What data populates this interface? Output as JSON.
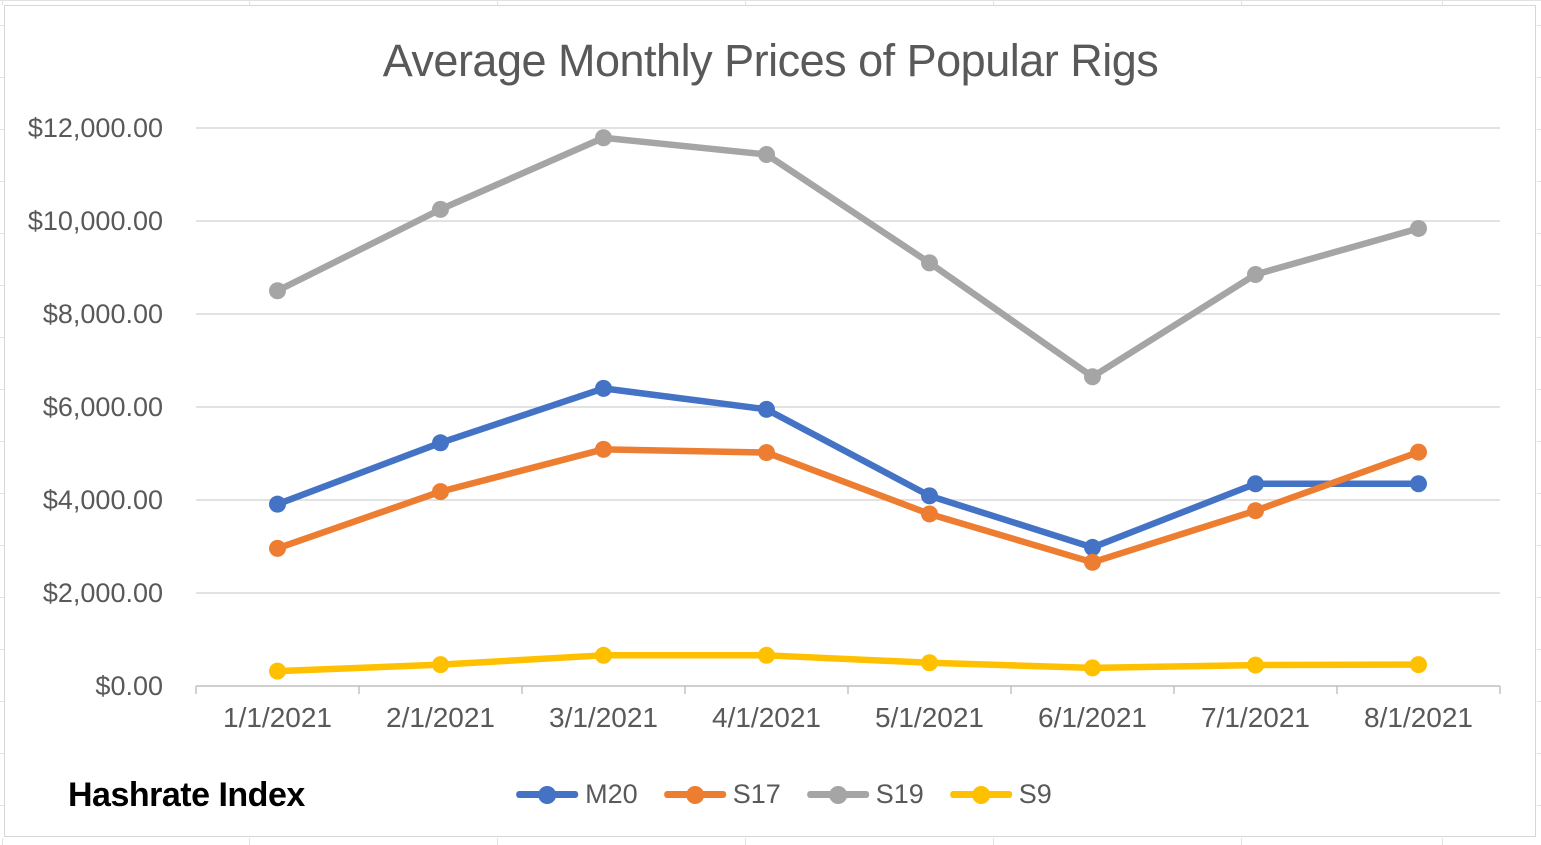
{
  "chart_data": {
    "type": "line",
    "title": "Average Monthly Prices of Popular Rigs",
    "categories": [
      "1/1/2021",
      "2/1/2021",
      "3/1/2021",
      "4/1/2021",
      "5/1/2021",
      "6/1/2021",
      "7/1/2021",
      "8/1/2021"
    ],
    "series": [
      {
        "name": "M20",
        "color": "#4472C4",
        "values": [
          3910,
          5230,
          6400,
          5950,
          4090,
          2980,
          4350,
          4350
        ]
      },
      {
        "name": "S17",
        "color": "#ED7D31",
        "values": [
          2960,
          4180,
          5090,
          5020,
          3700,
          2660,
          3770,
          5030
        ]
      },
      {
        "name": "S19",
        "color": "#A5A5A5",
        "values": [
          8500,
          10250,
          11790,
          11430,
          9100,
          6650,
          8850,
          9840
        ]
      },
      {
        "name": "S9",
        "color": "#FFC000",
        "values": [
          320,
          460,
          660,
          660,
          500,
          390,
          450,
          460
        ]
      }
    ],
    "y_axis": {
      "min": 0,
      "max": 12000,
      "step": 2000,
      "tick_labels": [
        "$0.00",
        "$2,000.00",
        "$4,000.00",
        "$6,000.00",
        "$8,000.00",
        "$10,000.00",
        "$12,000.00"
      ]
    },
    "xlabel": "",
    "ylabel": "",
    "grid": true,
    "legend_position": "bottom"
  },
  "branding": {
    "label": "Hashrate Index"
  },
  "colors": {
    "background": "#FFFFFF",
    "gridline": "#D9D9D9",
    "axis": "#BFBFBF",
    "text": "#595959",
    "border": "#D7D7D7",
    "brand_text": "#000000"
  }
}
